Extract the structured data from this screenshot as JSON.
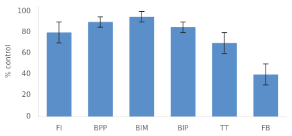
{
  "chart_data": {
    "type": "bar",
    "categories": [
      "FI",
      "BPP",
      "BIM",
      "BIP",
      "TT",
      "FB"
    ],
    "values": [
      80,
      90,
      95,
      85,
      70,
      40
    ],
    "errors": [
      10,
      5,
      5,
      5,
      10,
      10
    ],
    "color": "#5b8fc9",
    "ylabel": "% control",
    "ylim": [
      0,
      105
    ],
    "yticks": [
      0,
      20,
      40,
      60,
      80,
      100
    ],
    "grid": false
  }
}
